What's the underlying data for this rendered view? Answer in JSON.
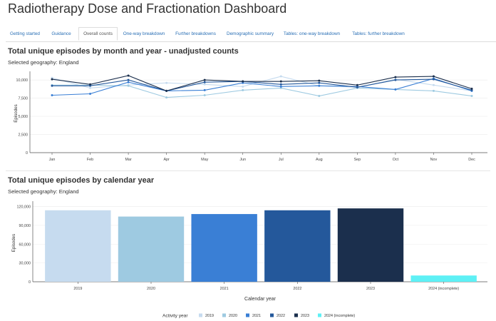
{
  "app": {
    "title": "Radiotherapy Dose and Fractionation Dashboard"
  },
  "tabs": [
    {
      "label": "Getting started",
      "active": false
    },
    {
      "label": "Guidance",
      "active": false
    },
    {
      "label": "Overall counts",
      "active": true
    },
    {
      "label": "One-way breakdown",
      "active": false
    },
    {
      "label": "Further breakdowns",
      "active": false
    },
    {
      "label": "Demographic summary",
      "active": false
    },
    {
      "label": "Tables: one-way breakdown",
      "active": false
    },
    {
      "label": "Tables: further breakdown",
      "active": false
    }
  ],
  "monthly": {
    "title": "Total unique episodes by month and year - unadjusted counts",
    "subtitle": "Selected geography: England"
  },
  "yearly": {
    "title": "Total unique episodes by calendar year",
    "subtitle": "Selected geography: England"
  },
  "chart_data": [
    {
      "type": "line",
      "x": [
        "Jan",
        "Feb",
        "Mar",
        "Apr",
        "May",
        "Jun",
        "Jul",
        "Aug",
        "Sep",
        "Oct",
        "Nov",
        "Dec"
      ],
      "ylabel": "Episodes",
      "xlabel": "",
      "ylim": [
        0,
        10800
      ],
      "yticks": [
        0,
        2500,
        5000,
        7500,
        10000
      ],
      "ytick_labels": [
        "0",
        "2,500",
        "5,000",
        "7,500",
        "10,000"
      ],
      "series": [
        {
          "year": "2019",
          "color": "#c6dbef",
          "values": [
            10300,
            8900,
            9300,
            9600,
            9400,
            9100,
            10500,
            9200,
            9000,
            10100,
            9300,
            8500
          ]
        },
        {
          "year": "2020",
          "color": "#9ecae1",
          "values": [
            9300,
            9300,
            9200,
            7600,
            7900,
            8600,
            8900,
            7800,
            8900,
            8700,
            8500,
            7800
          ]
        },
        {
          "year": "2021",
          "color": "#3a7fd5",
          "values": [
            7900,
            8100,
            9700,
            8500,
            8600,
            9600,
            9100,
            9200,
            9100,
            8700,
            10200,
            8500
          ]
        },
        {
          "year": "2022",
          "color": "#24589b",
          "values": [
            9200,
            9200,
            10000,
            8500,
            9700,
            9800,
            9400,
            9600,
            9000,
            10000,
            10100,
            8600
          ]
        },
        {
          "year": "2023",
          "color": "#1b2f4d",
          "values": [
            10100,
            9400,
            10600,
            8500,
            10000,
            9800,
            9800,
            9900,
            9300,
            10400,
            10500,
            8800
          ]
        }
      ]
    },
    {
      "type": "bar",
      "categories": [
        "2019",
        "2020",
        "2021",
        "2022",
        "2023",
        "2024 (incomplete)"
      ],
      "values": [
        114000,
        104000,
        108000,
        114000,
        117000,
        10000
      ],
      "colors": [
        "#c6dbef",
        "#9ecae1",
        "#3a7fd5",
        "#24589b",
        "#1b2f4d",
        "#5ef0f5"
      ],
      "xlabel": "Calendar year",
      "ylabel": "Episodes",
      "ylim": [
        0,
        124000
      ],
      "yticks": [
        0,
        30000,
        60000,
        90000,
        120000
      ],
      "ytick_labels": [
        "0",
        "30,000",
        "60,000",
        "90,000",
        "120,000"
      ],
      "legend": {
        "title": "Activity year",
        "placement": "bottom",
        "entries": [
          "2019",
          "2020",
          "2021",
          "2022",
          "2023",
          "2024 (incomplete)"
        ]
      }
    }
  ]
}
